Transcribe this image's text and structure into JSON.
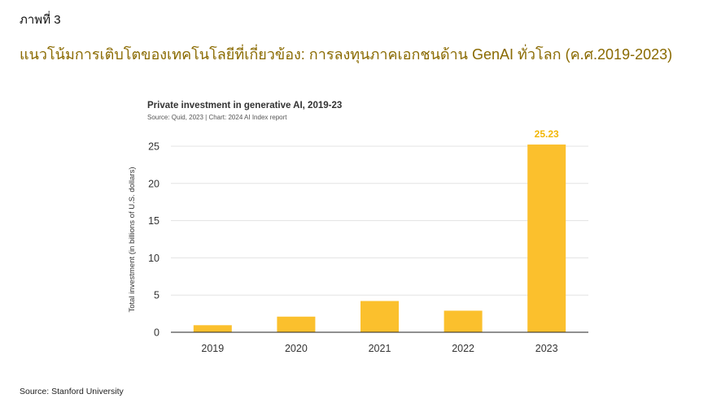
{
  "figure_label": "ภาพที่ 3",
  "heading": "แนวโน้มการเติบโตของเทคโนโลยีที่เกี่ยวข้อง: การลงทุนภาคเอกชนด้าน GenAI ทั่วโลก (ค.ศ.2019-2023)",
  "footer_source": "Source: Stanford University",
  "chart_data": {
    "type": "bar",
    "title": "Private investment in generative AI, 2019-23",
    "subtitle": "Source: Quid, 2023 | Chart: 2024 AI Index report",
    "xlabel": "",
    "ylabel": "Total investment (in billions of U.S. dollars)",
    "categories": [
      "2019",
      "2020",
      "2021",
      "2022",
      "2023"
    ],
    "values": [
      0.95,
      2.1,
      4.2,
      2.9,
      25.23
    ],
    "data_labels": [
      "",
      "",
      "",
      "",
      "25.23"
    ],
    "ylim": [
      0,
      25
    ],
    "yticks": [
      0,
      5,
      10,
      15,
      20,
      25
    ],
    "grid": true,
    "bar_color": "#fbc02d",
    "label_color": "#f2b705",
    "heading_color": "#8a6a00"
  }
}
